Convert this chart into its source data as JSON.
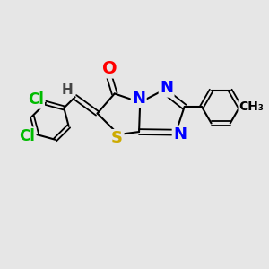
{
  "bg_color": "#e6e6e6",
  "bond_color": "#000000",
  "atom_colors": {
    "O": "#ff0000",
    "N": "#0000ff",
    "S": "#ccaa00",
    "Cl": "#00bb00",
    "H": "#444444",
    "C": "#000000",
    "Me": "#000000"
  },
  "fig_width": 3.0,
  "fig_height": 3.0,
  "dpi": 100
}
